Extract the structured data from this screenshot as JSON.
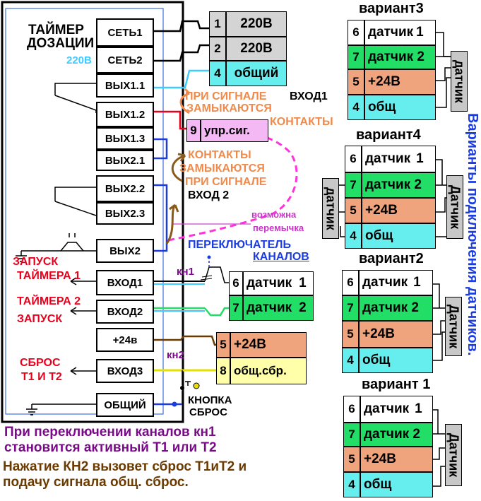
{
  "timer": {
    "title_line1": "ТАЙМЕР",
    "title_line2": "ДОЗАЦИИ",
    "voltage": "220В",
    "terminals": {
      "set1": "СЕТЬ1",
      "set2": "СЕТЬ2",
      "out11": "ВЫХ1.1",
      "out12": "ВЫХ1.2",
      "out13": "ВЫХ1.3",
      "out21": "ВЫХ2.1",
      "out22": "ВЫХ2.2",
      "out23": "ВЫХ2.3",
      "out2": "ВЫХ2",
      "in1": "ВХОД1",
      "in2": "ВХОД2",
      "p24": "+24в",
      "in3": "ВХОД3",
      "common": "ОБЩИЙ"
    }
  },
  "left_labels": {
    "start_timer1_a": "ЗАПУСК",
    "start_timer1_b": "ТАЙМЕРА 1",
    "start_timer2_a": "ТАЙМЕРА 2",
    "start_timer2_b": "ЗАПУСК",
    "reset_a": "СБРОС",
    "reset_b": "Т1 И Т2"
  },
  "power_block": {
    "rows": [
      {
        "num": "1",
        "label": "220В"
      },
      {
        "num": "2",
        "label": "220В"
      },
      {
        "num": "4",
        "label": "общий"
      }
    ]
  },
  "control_block": {
    "num": "9",
    "label": "упр.сиг."
  },
  "annotations": {
    "signal_closes_a": "ПРИ СИГНАЛЕ",
    "signal_closes_b": "ЗАМЫКАЮТСЯ",
    "signal_closes_c": "КОНТАКТЫ",
    "input1": "ВХОД1",
    "contacts_close_a": "КОНТАКТЫ",
    "contacts_close_b": "ЗАМЫКАЮТСЯ",
    "contacts_close_c": "ПРИ СИГНАЛЕ",
    "input2": "ВХОД 2",
    "jumper_a": "возможна",
    "jumper_b": "перемычка",
    "switch_a": "ПЕРЕКЛЮЧАТЕЛЬ",
    "switch_b": "КАНАЛОВ",
    "kn1": "кн1",
    "kn2": "кн2",
    "button_a": "КНОПКА",
    "button_b": "СБРОС"
  },
  "sensor_block": {
    "rows": [
      {
        "num": "6",
        "label": "датчик",
        "sub": "1"
      },
      {
        "num": "7",
        "label": "датчик",
        "sub": "2"
      }
    ]
  },
  "power24_block": {
    "rows": [
      {
        "num": "5",
        "label": "+24В"
      },
      {
        "num": "8",
        "label": "общ.сбр."
      }
    ]
  },
  "variants_title": "Варианты подключения датчиков.",
  "variants": [
    {
      "title": "вариант3",
      "sensor_label": "датчик",
      "rows": [
        {
          "num": "6",
          "label": "датчик",
          "sub": "1"
        },
        {
          "num": "7",
          "label": "датчик 2",
          "sub": ""
        },
        {
          "num": "5",
          "label": "+24В",
          "sub": ""
        },
        {
          "num": "4",
          "label": "общ",
          "sub": ""
        }
      ]
    },
    {
      "title": "вариант4",
      "sensor_left": "датчик",
      "sensor_right": "Датчик",
      "rows": [
        {
          "num": "6",
          "label": "датчик",
          "sub": "1"
        },
        {
          "num": "7",
          "label": "датчик 2",
          "sub": ""
        },
        {
          "num": "5",
          "label": "+24В",
          "sub": ""
        },
        {
          "num": "4",
          "label": "общ",
          "sub": ""
        }
      ]
    },
    {
      "title": "вариант2",
      "sensor_label": "Датчик",
      "rows": [
        {
          "num": "6",
          "label": "датчик",
          "sub": "1"
        },
        {
          "num": "7",
          "label": "датчик 2",
          "sub": ""
        },
        {
          "num": "5",
          "label": "+24В",
          "sub": ""
        },
        {
          "num": "4",
          "label": "общ",
          "sub": ""
        }
      ]
    },
    {
      "title": "вариант 1",
      "sensor_label": "Датчик",
      "rows": [
        {
          "num": "6",
          "label": "датчик",
          "sub": "1"
        },
        {
          "num": "7",
          "label": "датчик 2",
          "sub": ""
        },
        {
          "num": "5",
          "label": "+24В",
          "sub": ""
        },
        {
          "num": "4",
          "label": "общ",
          "sub": ""
        }
      ]
    }
  ],
  "footer": {
    "line1": "При переключении каналов кн1",
    "line2": "становится активный Т1 или Т2",
    "line3": "Нажатие КН2 вызовет сброс Т1иТ2 и",
    "line4": "подачу сигнала общ. сброс."
  },
  "colors": {
    "gray": "#d4d4d4",
    "cyan": "#66eeee",
    "green": "#22dd66",
    "salmon": "#f0a47e",
    "pink": "#f4b8f4",
    "orange_text": "#f08a4b",
    "red_text": "#e8001c",
    "blue_text": "#0a2ee6",
    "purple_text": "#7a0a8a",
    "brown_text": "#6b3a00"
  }
}
